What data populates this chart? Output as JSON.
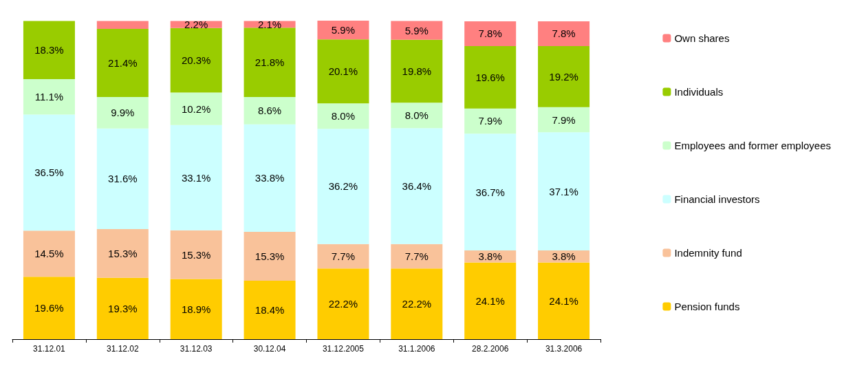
{
  "chart_data": {
    "type": "bar",
    "stacked": true,
    "legend": "right",
    "grid": false,
    "categories": [
      "31.12.01",
      "31.12.02",
      "31.12.03",
      "30.12.04",
      "31.12.2005",
      "31.1.2006",
      "28.2.2006",
      "31.3.2006"
    ],
    "series": [
      {
        "name": "Pension funds",
        "color": "#ffcc00",
        "values": [
          19.6,
          19.3,
          18.9,
          18.4,
          22.2,
          22.2,
          24.1,
          24.1
        ],
        "value_labels": [
          "19.6%",
          "19.3%",
          "18.9%",
          "18.4%",
          "22.2%",
          "22.2%",
          "24.1%",
          "24.1%"
        ]
      },
      {
        "name": "Indemnity fund",
        "color": "#f9c29a",
        "values": [
          14.5,
          15.3,
          15.3,
          15.3,
          7.7,
          7.7,
          3.8,
          3.8
        ],
        "value_labels": [
          "14.5%",
          "15.3%",
          "15.3%",
          "15.3%",
          "7.7%",
          "7.7%",
          "3.8%",
          "3.8%"
        ]
      },
      {
        "name": "Financial investors",
        "color": "#ccffff",
        "values": [
          36.5,
          31.6,
          33.1,
          33.8,
          36.2,
          36.4,
          36.7,
          37.1
        ],
        "value_labels": [
          "36.5%",
          "31.6%",
          "33.1%",
          "33.8%",
          "36.2%",
          "36.4%",
          "36.7%",
          "37.1%"
        ]
      },
      {
        "name": "Employees and former employees",
        "color": "#ccffcc",
        "values": [
          11.1,
          9.9,
          10.2,
          8.6,
          8.0,
          8.0,
          7.9,
          7.9
        ],
        "value_labels": [
          "11.1%",
          "9.9%",
          "10.2%",
          "8.6%",
          "8.0%",
          "8.0%",
          "7.9%",
          "7.9%"
        ]
      },
      {
        "name": "Individuals",
        "color": "#99cc00",
        "values": [
          18.3,
          21.4,
          20.3,
          21.8,
          20.1,
          19.8,
          19.6,
          19.2
        ],
        "value_labels": [
          "18.3%",
          "21.4%",
          "20.3%",
          "21.8%",
          "20.1%",
          "19.8%",
          "19.6%",
          "19.2%"
        ]
      },
      {
        "name": "Own shares",
        "color": "#ff8080",
        "values": [
          null,
          2.5,
          2.2,
          2.1,
          5.9,
          5.9,
          7.8,
          7.8
        ],
        "value_labels": [
          null,
          null,
          "2.2%",
          "2.1%",
          "5.9%",
          "5.9%",
          "7.8%",
          "7.8%"
        ]
      }
    ]
  }
}
